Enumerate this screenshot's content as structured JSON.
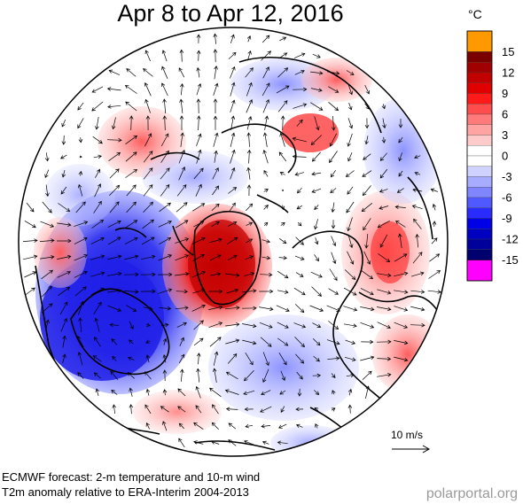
{
  "title": "Apr 8 to Apr 12, 2016",
  "colorbar": {
    "unit": "°C",
    "ticks": [
      "15",
      "12",
      "9",
      "6",
      "3",
      "0",
      "-3",
      "-6",
      "-9",
      "-12",
      "-15"
    ],
    "over_color": "#ff9900",
    "under_color": "#ff00ff",
    "colors": [
      "#7a0000",
      "#a00000",
      "#c30000",
      "#e00000",
      "#ff1a1a",
      "#ff4d4d",
      "#ff7a7a",
      "#ffa3a3",
      "#ffcaca",
      "#ffffff",
      "#ffffff",
      "#cfd2ff",
      "#a7acff",
      "#7f86ff",
      "#5059ff",
      "#2a2bff",
      "#0000e6",
      "#0000c0",
      "#00009a",
      "#00006e"
    ]
  },
  "map": {
    "projection": "polar stereographic, North Pole",
    "wind_scale_label": "10 m/s"
  },
  "footer": {
    "line1": "ECMWF forecast: 2-m temperature and 10-m wind",
    "line2": "T2m anomaly relative to ERA-Interim 2004-2013"
  },
  "brand": "polarportal.org"
}
